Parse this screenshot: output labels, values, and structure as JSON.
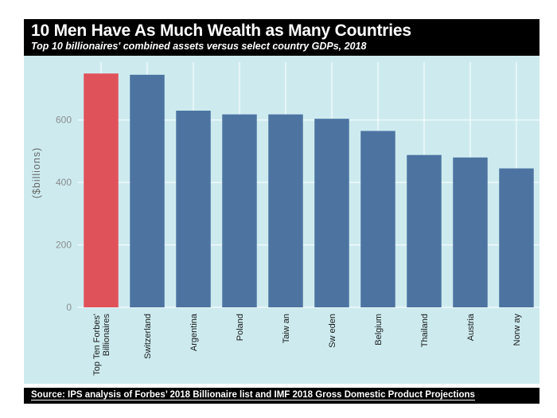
{
  "header": {
    "title": "10 Men Have As Much Wealth as Many Countries",
    "subtitle": "Top 10 billionaires' combined assets versus select country GDPs, 2018"
  },
  "footer": {
    "source": "Source: IPS analysis of Forbes’ 2018 Billionaire list and IMF 2018 Gross Domestic Product Projections"
  },
  "colors": {
    "highlight": "#e0525a",
    "bar": "#4d74a1",
    "panel": "#cdebef",
    "grid": "#ffffff",
    "tick_text": "#8c8c8c",
    "label_text": "#1a1a1a"
  },
  "chart_data": {
    "type": "bar",
    "title": "10 Men Have As Much Wealth as Many Countries",
    "ylabel": "($billions)",
    "xlabel": "",
    "ylim": [
      0,
      760
    ],
    "yticks": [
      0,
      200,
      400,
      600
    ],
    "grid": true,
    "categories": [
      [
        "Top Ten Forbes'",
        "Billionaires"
      ],
      [
        "Switzerland"
      ],
      [
        "Argentina"
      ],
      [
        "Poland"
      ],
      [
        "Taiw an"
      ],
      [
        "Sw eden"
      ],
      [
        "Belgium"
      ],
      [
        "Thailand"
      ],
      [
        "Austria"
      ],
      [
        "Norw ay"
      ]
    ],
    "values": [
      749,
      745,
      630,
      618,
      618,
      604,
      565,
      488,
      480,
      445
    ],
    "highlight_index": 0
  }
}
